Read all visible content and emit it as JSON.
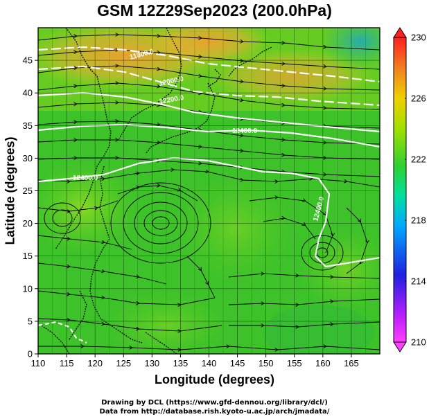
{
  "title": "GSM 12Z29Sep2023 (200.0hPa)",
  "colors": {
    "field_low": "#35c020",
    "field_high": "#f0a030",
    "coast": "#000000",
    "contour": "#ffffff",
    "grid": "#000000"
  },
  "chart_data": {
    "type": "map",
    "map_type": "streamline + temperature shading + geopotential height contours",
    "xlabel": "Longitude (degrees)",
    "ylabel": "Latitude (degrees)",
    "xlim": [
      110,
      170
    ],
    "ylim": [
      0,
      50
    ],
    "x_ticks": [
      110,
      115,
      120,
      125,
      130,
      135,
      140,
      145,
      150,
      155,
      160,
      165
    ],
    "y_ticks": [
      0,
      5,
      10,
      15,
      20,
      25,
      30,
      35,
      40,
      45
    ],
    "colorbar": {
      "range": [
        210,
        230
      ],
      "labels": [
        "230",
        "226",
        "222",
        "218",
        "214",
        "210"
      ],
      "colors": [
        "#ff00ff",
        "#0030ff",
        "#00a0ff",
        "#00e080",
        "#40d020",
        "#a0e000",
        "#f0a000",
        "#ff2000"
      ]
    },
    "contour_labels": [
      "12400.0",
      "12200.0",
      "12000.0",
      "11800.0"
    ],
    "vortices": [
      {
        "lon": 132,
        "lat": 22
      },
      {
        "lon": 158,
        "lat": 17
      }
    ]
  },
  "credits": {
    "line1": "Drawing by DCL (https://www.gfd-dennou.org/library/dcl/)",
    "line2": "Data from http://database.rish.kyoto-u.ac.jp/arch/jmadata/"
  }
}
